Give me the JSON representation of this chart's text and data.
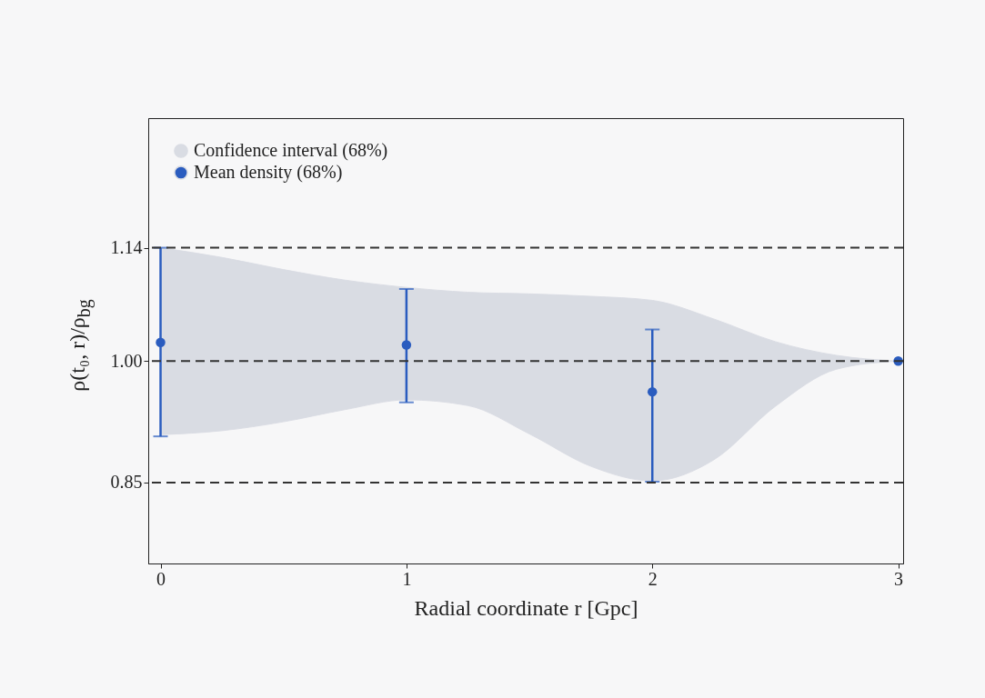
{
  "chart_data": {
    "type": "scatter",
    "xlabel": "Radial coordinate r [Gpc]",
    "ylabel": "ρ(t₀, r)/ρ$_{bg}$",
    "xlim": [
      -0.05,
      3.02
    ],
    "ylim": [
      0.75,
      1.3
    ],
    "xticks": [
      0,
      1,
      2,
      3
    ],
    "yticks": [
      0.85,
      {
        "value": 1.0,
        "label": "1.00"
      },
      1.14
    ],
    "grid": false,
    "legend": "top left",
    "marker": "circle",
    "series": [
      {
        "name": "Confidence interval (68%)",
        "type": "area",
        "color": "#d9dce3",
        "x": [
          0,
          0.25,
          0.5,
          0.75,
          1,
          1.25,
          1.5,
          1.75,
          2,
          2.25,
          2.5,
          2.75,
          3
        ],
        "values": [
          null,
          null,
          null,
          null,
          null,
          null,
          null,
          null,
          null,
          null,
          null,
          null,
          null
        ],
        "lower": [
          0.909,
          0.914,
          0.925,
          0.94,
          0.952,
          0.945,
          0.91,
          0.87,
          0.852,
          0.878,
          0.944,
          0.99,
          1.0
        ],
        "upper": [
          1.14,
          1.128,
          1.113,
          1.1,
          1.091,
          1.085,
          1.083,
          1.08,
          1.075,
          1.052,
          1.024,
          1.007,
          1.0
        ]
      },
      {
        "name": "Mean density (68%)",
        "color": "#2a5cbf",
        "x": [
          0,
          1,
          2,
          3
        ],
        "values": [
          1.023,
          1.02,
          0.962,
          1.0
        ],
        "errors": [
          [
            0.907,
            1.14
          ],
          [
            0.949,
            1.089
          ],
          [
            0.851,
            1.039
          ],
          null
        ]
      }
    ],
    "ref_lines": [
      {
        "axis": "y",
        "value": 1.14,
        "color": "#333333",
        "line_style": "dashed"
      },
      {
        "axis": "y",
        "value": 1.0,
        "color": "#333333",
        "line_style": "dashed"
      },
      {
        "axis": "y",
        "value": 0.85,
        "color": "#333333",
        "line_style": "dashed"
      }
    ]
  }
}
